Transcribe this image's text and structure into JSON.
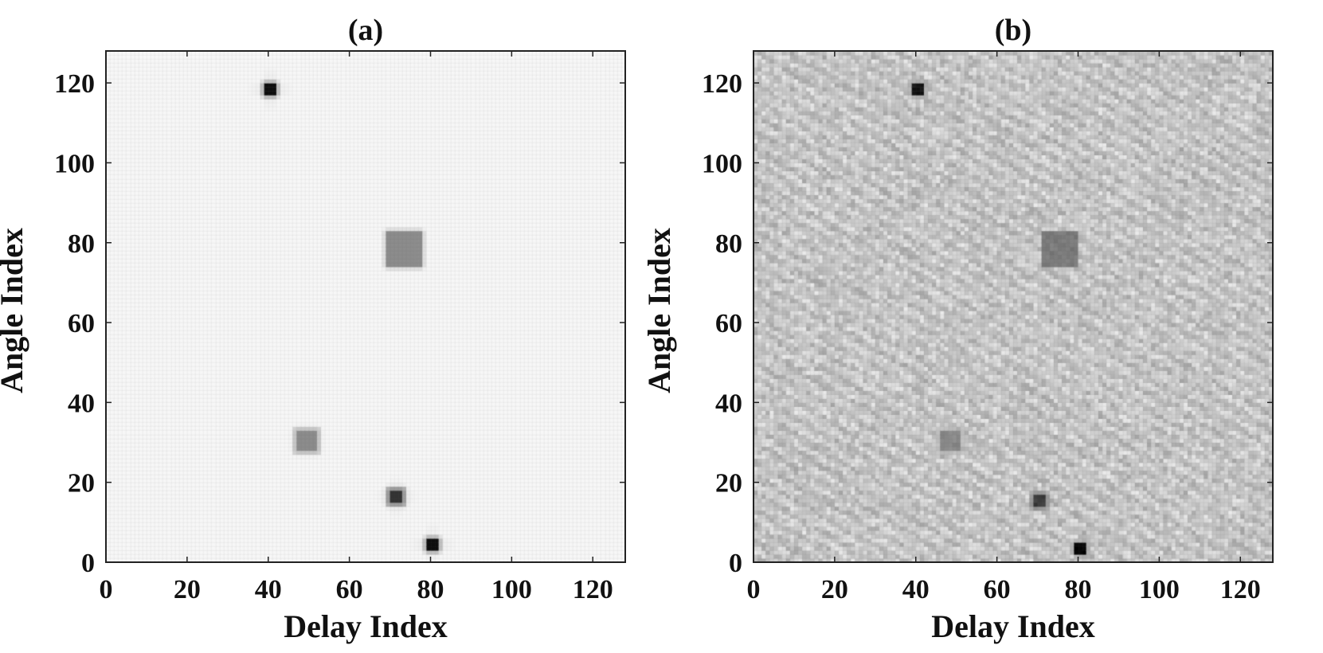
{
  "chart_data": [
    {
      "type": "heatmap",
      "title": "(a)",
      "xlabel": "Delay Index",
      "ylabel": "Angle Index",
      "xlim": [
        0,
        128
      ],
      "ylim": [
        0,
        128
      ],
      "xticks": [
        0,
        20,
        40,
        60,
        80,
        100,
        120
      ],
      "yticks": [
        0,
        20,
        40,
        60,
        80,
        100,
        120
      ],
      "colormap": "gray-reversed",
      "background_level": 0.03,
      "noise": false,
      "grid_on": true,
      "peaks": [
        {
          "delay": 40,
          "angle": 118,
          "half_width": 1,
          "intensity": 0.95
        },
        {
          "delay": 73,
          "angle": 78,
          "half_width": 4,
          "intensity": 0.45
        },
        {
          "delay": 49,
          "angle": 30,
          "half_width": 2.5,
          "intensity": 0.45
        },
        {
          "delay": 71,
          "angle": 16,
          "half_width": 1.5,
          "intensity": 0.8
        },
        {
          "delay": 80,
          "angle": 4,
          "half_width": 1,
          "intensity": 0.95
        }
      ]
    },
    {
      "type": "heatmap",
      "title": "(b)",
      "xlabel": "Delay Index",
      "ylabel": "Angle Index",
      "xlim": [
        0,
        128
      ],
      "ylim": [
        0,
        128
      ],
      "xticks": [
        0,
        20,
        40,
        60,
        80,
        100,
        120
      ],
      "yticks": [
        0,
        20,
        40,
        60,
        80,
        100,
        120
      ],
      "colormap": "gray-reversed",
      "background_level": 0.22,
      "noise": true,
      "grid_on": true,
      "peaks": [
        {
          "delay": 40,
          "angle": 118,
          "half_width": 1,
          "intensity": 0.85
        },
        {
          "delay": 75,
          "angle": 78,
          "half_width": 4,
          "intensity": 0.45
        },
        {
          "delay": 48,
          "angle": 30,
          "half_width": 2.5,
          "intensity": 0.4
        },
        {
          "delay": 70,
          "angle": 15,
          "half_width": 1.5,
          "intensity": 0.7
        },
        {
          "delay": 80,
          "angle": 3,
          "half_width": 1,
          "intensity": 0.9
        }
      ]
    }
  ]
}
